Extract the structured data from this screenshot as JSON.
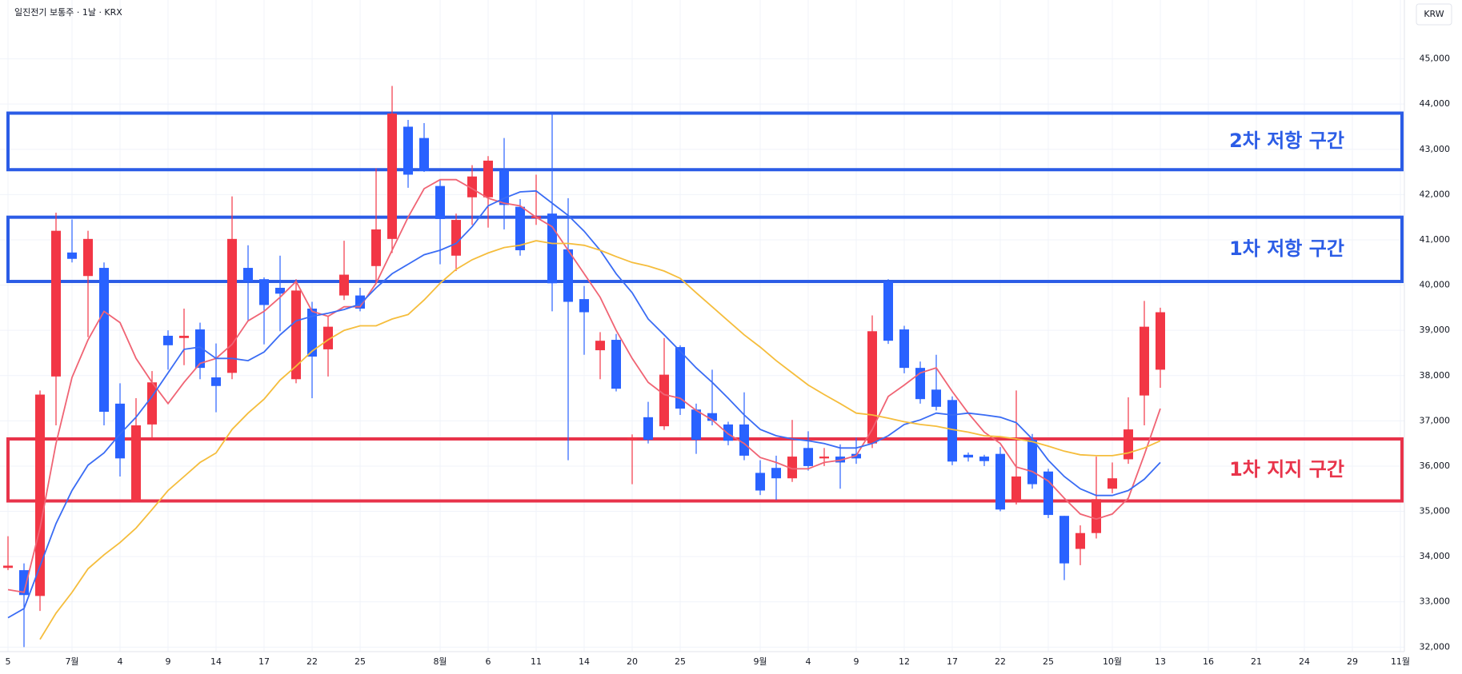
{
  "chart_data": {
    "type": "candlestick",
    "title": "일진전기 보통주 · 1날 · KRX",
    "currency": "KRW",
    "categories": [
      "5",
      null,
      null,
      null,
      "7월",
      null,
      null,
      "4",
      null,
      null,
      "9",
      null,
      null,
      "14",
      null,
      null,
      "17",
      null,
      null,
      "22",
      null,
      null,
      "25",
      null,
      null,
      null,
      null,
      "8월",
      null,
      null,
      "6",
      null,
      null,
      "11",
      null,
      null,
      "14",
      null,
      null,
      "20",
      null,
      null,
      "25",
      null,
      null,
      null,
      null,
      "9월",
      null,
      null,
      "4",
      null,
      null,
      "9",
      null,
      null,
      "12",
      null,
      null,
      "17",
      null,
      null,
      "22",
      null,
      null,
      "25",
      null,
      null,
      null,
      "10월",
      null,
      null,
      "13",
      null,
      null,
      "16",
      null,
      null,
      "21",
      null,
      null,
      "24",
      null,
      null,
      "29",
      null,
      null,
      "11월"
    ],
    "open": [
      33750,
      33700,
      33130,
      37980,
      40720,
      40200,
      40380,
      37380,
      35230,
      36920,
      38880,
      38830,
      39020,
      37960,
      38060,
      40380,
      40130,
      39940,
      37920,
      39480,
      38580,
      39770,
      39770,
      40420,
      41020,
      43500,
      43250,
      42190,
      40650,
      41940,
      41940,
      42540,
      41730,
      41480,
      41580,
      40790,
      39690,
      38560,
      38790,
      36580,
      37080,
      36880,
      38630,
      37250,
      37170,
      36920,
      36920,
      35850,
      35960,
      35730,
      36400,
      36170,
      36210,
      36270,
      36500,
      40080,
      39020,
      38170,
      37690,
      37460,
      36250,
      36210,
      36270,
      35230,
      36580,
      35880,
      34900,
      34170,
      34520,
      35500,
      36150,
      37560,
      38130,
      null,
      null,
      null,
      null,
      null,
      null,
      null,
      null,
      null,
      null,
      null,
      null,
      null,
      null,
      null
    ],
    "high": [
      34450,
      33850,
      37670,
      41600,
      41450,
      41200,
      40500,
      37830,
      37500,
      38100,
      39000,
      39480,
      39170,
      38710,
      41960,
      40880,
      40170,
      40650,
      40130,
      39630,
      39310,
      40980,
      39940,
      42580,
      44400,
      43650,
      43580,
      42330,
      41580,
      42650,
      42850,
      43250,
      41900,
      42440,
      43790,
      41920,
      39980,
      38960,
      38920,
      36700,
      37420,
      38830,
      38670,
      37380,
      38130,
      36980,
      37630,
      36130,
      36230,
      37020,
      36770,
      36400,
      36480,
      36630,
      39330,
      40130,
      39100,
      38310,
      38460,
      37540,
      36300,
      36250,
      36420,
      37670,
      36710,
      35940,
      34900,
      34690,
      36210,
      36080,
      37520,
      39650,
      39500,
      null,
      null,
      null,
      null,
      null,
      null,
      null,
      null,
      null,
      null,
      null,
      null,
      null,
      null,
      null
    ],
    "low": [
      33700,
      32000,
      32800,
      36900,
      40500,
      38850,
      36900,
      35770,
      35200,
      36600,
      38130,
      38230,
      37920,
      37190,
      37920,
      39210,
      38690,
      38980,
      37830,
      37500,
      37980,
      39670,
      39420,
      40040,
      40710,
      42150,
      42500,
      40460,
      40310,
      41330,
      41270,
      41230,
      40650,
      41330,
      39420,
      36130,
      38460,
      37920,
      37650,
      35600,
      36500,
      36800,
      37130,
      36270,
      36900,
      36460,
      36130,
      35360,
      35250,
      35650,
      35900,
      36000,
      35500,
      36050,
      36400,
      38700,
      38050,
      37380,
      37230,
      36020,
      36100,
      36000,
      35000,
      35150,
      35500,
      34850,
      33480,
      33810,
      34400,
      35400,
      36050,
      36900,
      37730,
      null,
      null,
      null,
      null,
      null,
      null,
      null,
      null,
      null,
      null,
      null,
      null,
      null,
      null,
      null
    ],
    "close": [
      33800,
      33150,
      37580,
      41200,
      40580,
      41020,
      37200,
      36170,
      36900,
      37850,
      38670,
      38880,
      38170,
      37770,
      41020,
      40080,
      39560,
      39810,
      39880,
      38420,
      39080,
      40230,
      39480,
      41230,
      43790,
      42440,
      42520,
      41460,
      41440,
      42400,
      42750,
      41770,
      40770,
      41520,
      40040,
      39630,
      39400,
      38770,
      37710,
      36620,
      36580,
      38020,
      37270,
      36580,
      37000,
      36560,
      36230,
      35460,
      35730,
      36210,
      36000,
      36210,
      36080,
      36170,
      38980,
      38770,
      38170,
      37480,
      37310,
      36100,
      36190,
      36110,
      35040,
      35770,
      35600,
      34920,
      33850,
      34520,
      35270,
      35730,
      36810,
      39080,
      39400,
      null,
      null,
      null,
      null,
      null,
      null,
      null,
      null,
      null,
      null,
      null,
      null,
      null,
      null,
      null
    ],
    "up_color": "#f23645",
    "down_color": "#2962ff",
    "lines": [
      {
        "color": "#f06474",
        "values": [
          33270,
          33210,
          34630,
          36500,
          37960,
          38790,
          39420,
          39170,
          38380,
          37850,
          37380,
          37850,
          38270,
          38380,
          38690,
          39210,
          39420,
          39730,
          40080,
          39420,
          39310,
          39520,
          39520,
          40040,
          40770,
          41500,
          42130,
          42330,
          42330,
          42130,
          41920,
          41810,
          41750,
          41500,
          41290,
          40770,
          40250,
          39730,
          39000,
          38380,
          37850,
          37580,
          37500,
          37230,
          37020,
          36710,
          36500,
          36190,
          36080,
          35940,
          35940,
          36080,
          36130,
          36230,
          36810,
          37540,
          37790,
          38060,
          38170,
          37650,
          37170,
          36750,
          36500,
          35980,
          35880,
          35670,
          35290,
          34940,
          34830,
          34940,
          35290,
          36250,
          37270,
          null,
          null,
          null,
          null,
          null,
          null,
          null,
          null,
          null,
          null,
          null,
          null,
          null,
          null,
          null
        ]
      },
      {
        "color": "#3a6cf4",
        "values": [
          32650,
          32850,
          33790,
          34730,
          35460,
          36020,
          36290,
          36710,
          37080,
          37540,
          38060,
          38580,
          38630,
          38380,
          38380,
          38330,
          38520,
          38900,
          39210,
          39310,
          39380,
          39460,
          39580,
          39940,
          40250,
          40460,
          40670,
          40770,
          40920,
          41290,
          41750,
          41920,
          42060,
          42080,
          41810,
          41540,
          41190,
          40770,
          40250,
          39830,
          39250,
          38900,
          38540,
          38170,
          37850,
          37500,
          37130,
          36810,
          36670,
          36600,
          36560,
          36500,
          36400,
          36400,
          36500,
          36670,
          36920,
          37020,
          37170,
          37130,
          37170,
          37130,
          37080,
          36960,
          36600,
          36130,
          35770,
          35500,
          35350,
          35350,
          35460,
          35710,
          36080,
          null,
          null,
          null,
          null,
          null,
          null,
          null,
          null,
          null,
          null,
          null,
          null,
          null,
          null,
          null
        ]
      },
      {
        "color": "#f5bd3c",
        "values": [
          null,
          null,
          32170,
          32750,
          33210,
          33730,
          34040,
          34310,
          34630,
          35040,
          35460,
          35770,
          36080,
          36290,
          36810,
          37170,
          37480,
          37900,
          38210,
          38540,
          38790,
          39000,
          39100,
          39100,
          39250,
          39350,
          39670,
          40040,
          40350,
          40560,
          40710,
          40830,
          40880,
          40980,
          40920,
          40920,
          40880,
          40770,
          40630,
          40500,
          40420,
          40310,
          40150,
          39830,
          39520,
          39210,
          38900,
          38630,
          38330,
          38060,
          37790,
          37580,
          37380,
          37170,
          37130,
          37060,
          36980,
          36920,
          36880,
          36810,
          36750,
          36670,
          36650,
          36600,
          36540,
          36440,
          36330,
          36250,
          36230,
          36230,
          36290,
          36400,
          36560,
          null,
          null,
          null,
          null,
          null,
          null,
          null,
          null,
          null,
          null,
          null,
          null,
          null,
          null,
          null
        ]
      }
    ],
    "zones": [
      {
        "label": "2차 저항 구간",
        "color": "#2b5ce6",
        "range": [
          42550,
          43800
        ]
      },
      {
        "label": "1차 저항 구간",
        "color": "#2b5ce6",
        "range": [
          40080,
          41500
        ]
      },
      {
        "label": "1차 지지 구간",
        "color": "#e8334a",
        "range": [
          35230,
          36600
        ]
      }
    ],
    "ylim": [
      31900,
      46300
    ],
    "yticks": [
      {
        "value": 32000,
        "label": "32,000"
      },
      {
        "value": 33000,
        "label": "33,000"
      },
      {
        "value": 34000,
        "label": "34,000"
      },
      {
        "value": 35000,
        "label": "35,000"
      },
      {
        "value": 36000,
        "label": "36,000"
      },
      {
        "value": 37000,
        "label": "37,000"
      },
      {
        "value": 38000,
        "label": "38,000"
      },
      {
        "value": 39000,
        "label": "39,000"
      },
      {
        "value": 40000,
        "label": "40,000"
      },
      {
        "value": 41000,
        "label": "41,000"
      },
      {
        "value": 42000,
        "label": "42,000"
      },
      {
        "value": 43000,
        "label": "43,000"
      },
      {
        "value": 44000,
        "label": "44,000"
      },
      {
        "value": 45000,
        "label": "45,000"
      }
    ],
    "grid": true
  }
}
